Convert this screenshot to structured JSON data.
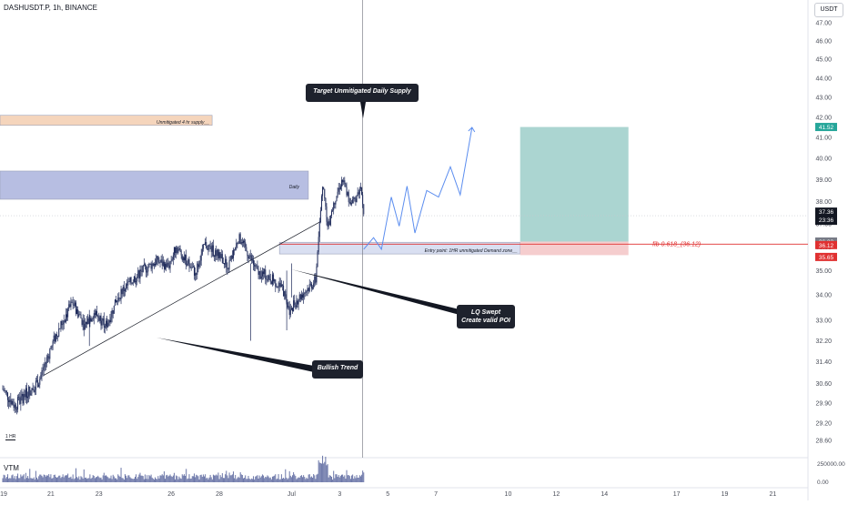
{
  "header": {
    "symbol": "DASHUSDT.P, 1h, BINANCE",
    "currency_button": "USDT",
    "timeframe_label": "1 HR",
    "volume_label": "VTM"
  },
  "colors": {
    "candle": "#1e2a5a",
    "supply_zone": "#f2c7a5",
    "demand_zone": "#ccd4ec",
    "daily_zone": "#9fa8d8",
    "target_zone": "#8fc7c1",
    "stop_zone": "#f3c4c6",
    "fib": "#e03131",
    "projection": "#5b8def",
    "axis_text": "#4a4e59"
  },
  "chart_data": {
    "type": "candlestick",
    "title": "DASHUSDT.P, 1h, BINANCE",
    "y_axis": {
      "scale": "log",
      "tick_labels": [
        "47.00",
        "46.00",
        "45.00",
        "44.00",
        "43.00",
        "42.00",
        "41.00",
        "40.00",
        "39.00",
        "38.00",
        "37.00",
        "36.00",
        "35.00",
        "34.00",
        "33.00",
        "32.20",
        "31.40",
        "30.60",
        "29.90",
        "29.20",
        "28.60"
      ]
    },
    "x_axis": {
      "tick_labels": [
        "19",
        "21",
        "23",
        "26",
        "28",
        "Jul",
        "3",
        "5",
        "7",
        "10",
        "12",
        "14",
        "17",
        "19",
        "21"
      ]
    },
    "price_labels": [
      {
        "id": "target",
        "text": "41.52",
        "color": "#26a69a"
      },
      {
        "id": "current",
        "text": "37.36",
        "sub": "23:36",
        "color": "#131722"
      },
      {
        "id": "entry",
        "text": "36.23",
        "color": "#787b86"
      },
      {
        "id": "fib",
        "text": "36.12",
        "color": "#e03131"
      },
      {
        "id": "stop",
        "text": "35.65",
        "color": "#e03131"
      }
    ],
    "volume_axis": [
      "250000.00",
      "0.00"
    ],
    "zones": [
      {
        "name": "Unmitigated 4 hr supply",
        "label": "Unmitigated 4 hr supply__",
        "low": 41.6,
        "high": 42.1
      },
      {
        "name": "Daily",
        "label": "Daily",
        "low": 38.1,
        "high": 39.4
      },
      {
        "name": "Entry point: 1HR unmitigated Demand zone",
        "label": "Entry point: 1HR unmitigated Demand zone__",
        "low": 35.7,
        "high": 36.2
      }
    ],
    "position": {
      "entry": 36.23,
      "target": 41.52,
      "stop": 35.65
    },
    "fib": {
      "label": "fib 0.618_(36.12)",
      "value": 36.12
    },
    "projection_path": [
      [
        37.4,
        35.9
      ],
      [
        37.9,
        36.4
      ],
      [
        38.3,
        35.9
      ],
      [
        38.8,
        38.2
      ],
      [
        39.2,
        36.9
      ],
      [
        39.6,
        38.7
      ],
      [
        40.0,
        36.6
      ],
      [
        40.6,
        38.5
      ],
      [
        41.2,
        38.2
      ],
      [
        41.8,
        39.6
      ],
      [
        42.3,
        38.3
      ],
      [
        42.9,
        41.5
      ]
    ],
    "annotations": [
      {
        "text": "Target Unmitigated Daily Supply"
      },
      {
        "text": "LQ Swept\nCreate valid POI"
      },
      {
        "text": "Bullish Trend"
      }
    ]
  }
}
